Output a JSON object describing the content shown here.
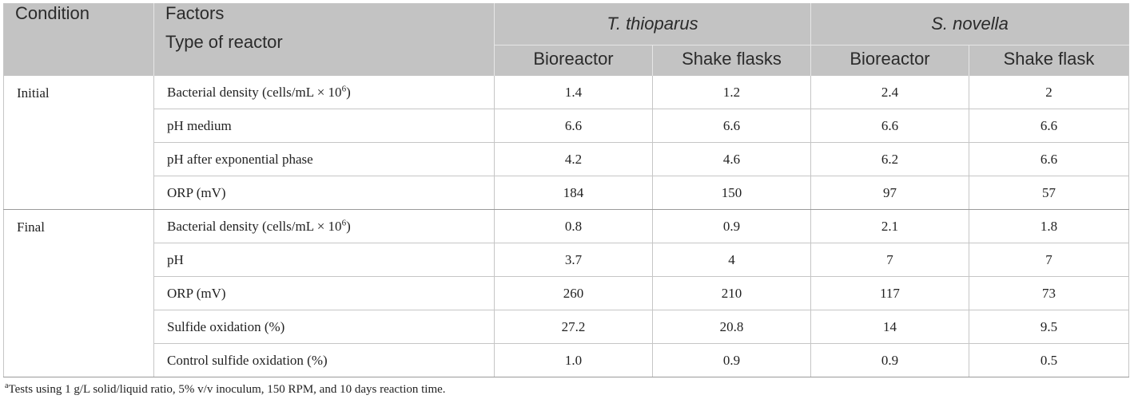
{
  "header": {
    "condition": "Condition",
    "factors": "Factors",
    "type_of_reactor": "Type of reactor",
    "groups": [
      "T. thioparus",
      "S. novella"
    ],
    "subcolumns": [
      "Bioreactor",
      "Shake flasks",
      "Bioreactor",
      "Shake flask"
    ]
  },
  "rows": [
    {
      "condition": "Initial",
      "factor": "Bacterial density (cells/mL × 10",
      "sup": "6",
      "factor_tail": ")",
      "values": [
        "1.4",
        "1.2",
        "2.4",
        "2"
      ]
    },
    {
      "factor": "pH medium",
      "values": [
        "6.6",
        "6.6",
        "6.6",
        "6.6"
      ]
    },
    {
      "factor": "pH after exponential phase",
      "values": [
        "4.2",
        "4.6",
        "6.2",
        "6.6"
      ]
    },
    {
      "factor": "ORP (mV)",
      "values": [
        "184",
        "150",
        "97",
        "57"
      ]
    },
    {
      "condition": "Final",
      "factor": "Bacterial density (cells/mL × 10",
      "sup": "6",
      "factor_tail": ")",
      "values": [
        "0.8",
        "0.9",
        "2.1",
        "1.8"
      ]
    },
    {
      "factor": "pH",
      "values": [
        "3.7",
        "4",
        "7",
        "7"
      ]
    },
    {
      "factor": "ORP (mV)",
      "values": [
        "260",
        "210",
        "117",
        "73"
      ]
    },
    {
      "factor": "Sulfide oxidation (%)",
      "values": [
        "27.2",
        "20.8",
        "14",
        "9.5"
      ]
    },
    {
      "factor": "Control sulfide oxidation (%)",
      "values": [
        "1.0",
        "0.9",
        "0.9",
        "0.5"
      ]
    }
  ],
  "footnote": {
    "marker": "a",
    "text": "Tests using 1 g/L solid/liquid ratio, 5% v/v inoculum, 150 RPM, and 10 days reaction time."
  }
}
